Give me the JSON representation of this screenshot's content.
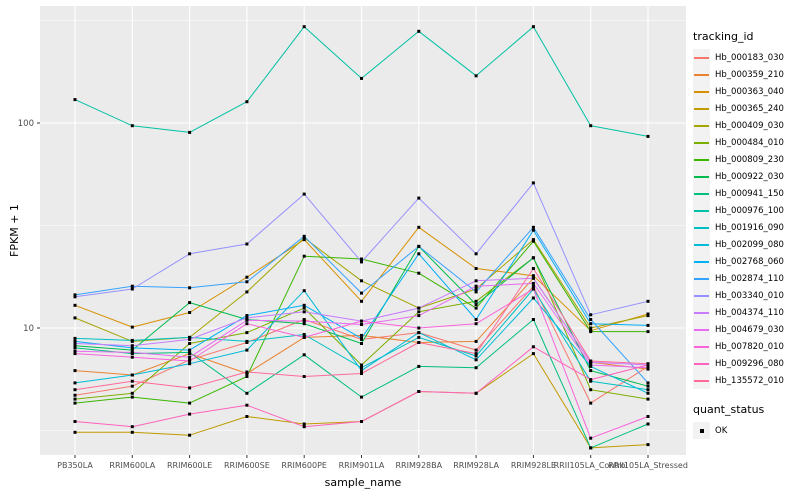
{
  "chart_data": {
    "type": "line",
    "title": "",
    "xlabel": "sample_name",
    "ylabel": "FPKM + 1",
    "y_scale": "log10",
    "ylim": [
      2.4,
      372
    ],
    "y_major_ticks": [
      100,
      10
    ],
    "y_minor_gridlines": [
      316.23,
      31.623,
      3.1623
    ],
    "grid": "white major and minor gridlines on gray panel",
    "legend_position": "right",
    "panel_bg": "#EBEBEB",
    "gridline_color": "#FFFFFF",
    "marker": {
      "shape": "square",
      "color": "#000000",
      "size": 3
    },
    "categories": [
      "PB350LA",
      "RRIM600LA",
      "RRIM600LE",
      "RRIM600SE",
      "RRIM600PE",
      "RRIM901LA",
      "RRIM928BA",
      "RRIM928LA",
      "RRIM928LE",
      "RRII105LA_Control",
      "RRII105LA_Stressed"
    ],
    "series": [
      {
        "name": "Hb_000183_030",
        "color": "#F8766D",
        "values": [
          4.7,
          5.2,
          7.0,
          8.5,
          11.0,
          8.8,
          9.5,
          7.8,
          16.0,
          4.3,
          6.5
        ]
      },
      {
        "name": "Hb_000359_210",
        "color": "#EA8331",
        "values": [
          6.2,
          5.9,
          7.5,
          6.0,
          9.0,
          9.2,
          8.5,
          8.6,
          17.5,
          6.8,
          6.3
        ]
      },
      {
        "name": "Hb_000363_040",
        "color": "#D89000",
        "values": [
          12.9,
          10.1,
          11.9,
          17.7,
          27.0,
          13.5,
          31.0,
          19.5,
          18.0,
          9.7,
          11.7
        ]
      },
      {
        "name": "Hb_000365_240",
        "color": "#C09B00",
        "values": [
          3.1,
          3.1,
          3.0,
          3.7,
          3.4,
          3.5,
          4.9,
          4.8,
          7.5,
          2.6,
          2.7
        ]
      },
      {
        "name": "Hb_000409_030",
        "color": "#A3A500",
        "values": [
          11.2,
          8.6,
          9.0,
          15.0,
          27.5,
          17.0,
          12.5,
          15.5,
          27.0,
          10.0,
          11.5
        ]
      },
      {
        "name": "Hb_000484_010",
        "color": "#7CAE00",
        "values": [
          4.5,
          4.8,
          8.4,
          9.5,
          12.5,
          6.6,
          12.0,
          13.5,
          22.0,
          5.0,
          4.5
        ]
      },
      {
        "name": "Hb_000809_230",
        "color": "#39B600",
        "values": [
          4.3,
          4.6,
          4.3,
          5.8,
          22.4,
          21.7,
          18.5,
          12.5,
          26.5,
          9.6,
          9.6
        ]
      },
      {
        "name": "Hb_000922_030",
        "color": "#00BB4E",
        "values": [
          8.2,
          7.8,
          13.3,
          11.0,
          10.5,
          8.4,
          25.0,
          13.0,
          22.0,
          6.2,
          5.2
        ]
      },
      {
        "name": "Hb_000941_150",
        "color": "#00BF7D",
        "values": [
          8.0,
          7.5,
          7.6,
          4.8,
          7.4,
          4.6,
          6.5,
          6.4,
          11.0,
          2.6,
          3.4
        ]
      },
      {
        "name": "Hb_000976_100",
        "color": "#00C1A3",
        "values": [
          130,
          97,
          90,
          127,
          295,
          165,
          280,
          170,
          295,
          97,
          86
        ]
      },
      {
        "name": "Hb_001916_090",
        "color": "#00BFC4",
        "values": [
          8.9,
          8.7,
          9.0,
          8.6,
          9.3,
          6.4,
          9.0,
          7.3,
          15.5,
          5.5,
          5.0
        ]
      },
      {
        "name": "Hb_002099_080",
        "color": "#00BBDA",
        "values": [
          5.4,
          5.9,
          6.7,
          7.8,
          15.2,
          6.2,
          9.5,
          7.0,
          14.0,
          6.5,
          4.8
        ]
      },
      {
        "name": "Hb_002768_060",
        "color": "#00B0F6",
        "values": [
          8.6,
          8.0,
          7.8,
          11.5,
          12.9,
          8.9,
          23.0,
          11.0,
          30.0,
          10.5,
          10.3
        ]
      },
      {
        "name": "Hb_002874_110",
        "color": "#35A2FF",
        "values": [
          14.5,
          16.0,
          15.7,
          16.8,
          28.0,
          14.8,
          25.0,
          15.0,
          31.0,
          11.0,
          5.4
        ]
      },
      {
        "name": "Hb_003340_010",
        "color": "#9590FF",
        "values": [
          14.2,
          15.5,
          23.0,
          25.7,
          45.0,
          21.0,
          43.0,
          23.0,
          51.0,
          11.6,
          13.5
        ]
      },
      {
        "name": "Hb_004374_110",
        "color": "#C77CFF",
        "values": [
          8.4,
          8.2,
          8.8,
          11.2,
          12.0,
          10.8,
          12.5,
          17.0,
          17.5,
          6.8,
          6.6
        ]
      },
      {
        "name": "Hb_004679_030",
        "color": "#E76BF3",
        "values": [
          7.7,
          7.6,
          7.2,
          10.9,
          10.8,
          10.4,
          11.5,
          16.0,
          16.5,
          6.6,
          6.4
        ]
      },
      {
        "name": "Hb_007820_010",
        "color": "#FA62DB",
        "values": [
          7.5,
          7.2,
          6.9,
          10.5,
          9.0,
          10.8,
          10.0,
          10.5,
          15.5,
          2.9,
          3.7
        ]
      },
      {
        "name": "Hb_009296_080",
        "color": "#FF62BC",
        "values": [
          3.5,
          3.3,
          3.8,
          4.2,
          3.3,
          3.5,
          4.9,
          4.8,
          8.1,
          5.6,
          6.6
        ]
      },
      {
        "name": "Hb_135572_010",
        "color": "#FF6A98",
        "values": [
          5.0,
          5.5,
          5.1,
          6.1,
          5.8,
          6.0,
          8.5,
          7.5,
          19.5,
          6.9,
          6.7
        ]
      }
    ]
  },
  "axes": {
    "x_label": "sample_name",
    "y_label": "FPKM + 1",
    "y_tick_labels": [
      "100",
      "10"
    ]
  },
  "legend": {
    "tracking_title": "tracking_id",
    "quant_title": "quant_status",
    "quant_ok_label": "OK",
    "key_bg": "#F2F2F2"
  }
}
